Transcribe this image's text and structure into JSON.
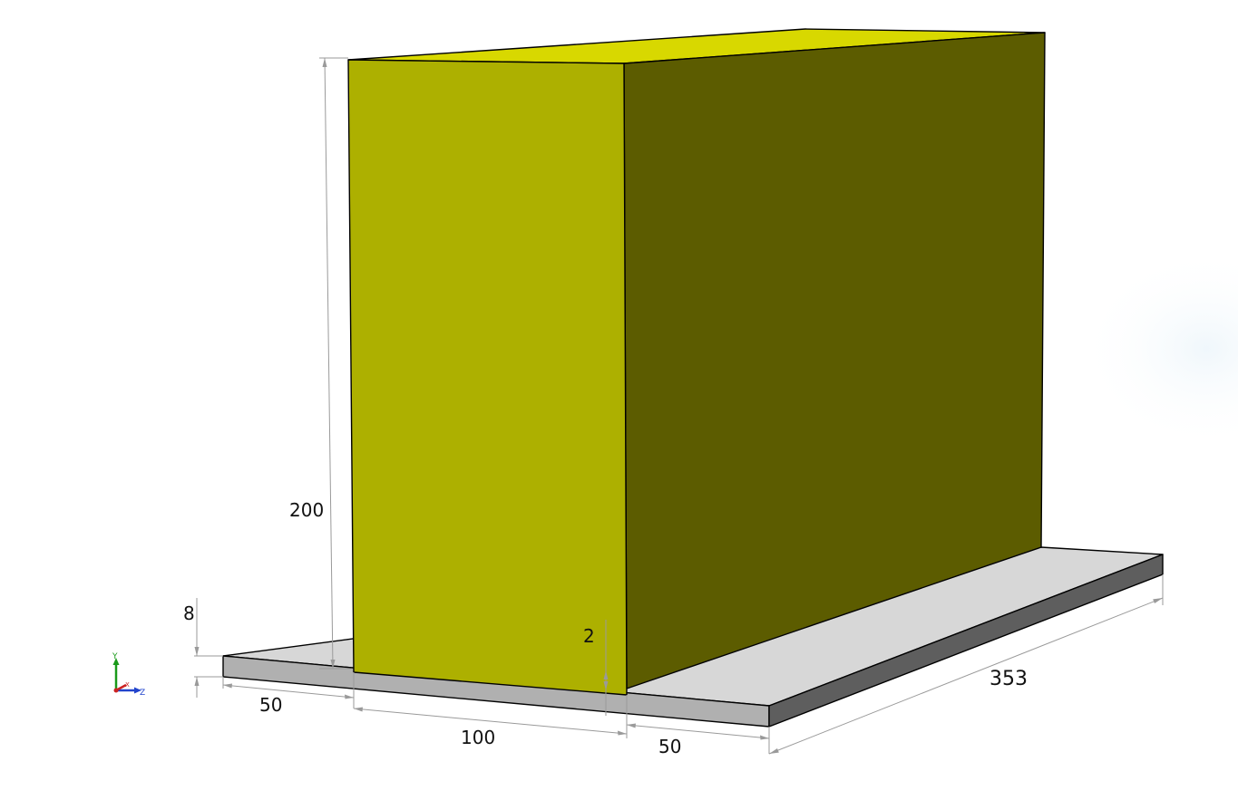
{
  "dimensions": {
    "box_height": "200",
    "plate_thickness": "8",
    "gap": "2",
    "left_margin": "50",
    "box_width": "100",
    "right_margin": "50",
    "length": "353"
  },
  "axis_triad": {
    "y_label": "Y",
    "x_label": "X",
    "z_label": "Z",
    "colors": {
      "y": "#1a9a1a",
      "x": "#cc2222",
      "z": "#2244cc"
    }
  },
  "colors": {
    "box_front": "#adb000",
    "box_side": "#5c5c00",
    "box_top": "#d8d800",
    "plate_top": "#d7d7d7",
    "plate_front": "#b0b0b0",
    "plate_side": "#5e5e5e"
  },
  "icons": {
    "triad": "axis-triad-icon"
  }
}
